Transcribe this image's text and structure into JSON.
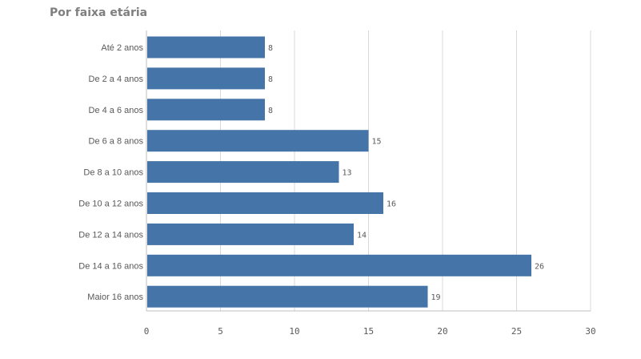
{
  "chart_data": {
    "type": "bar",
    "orientation": "horizontal",
    "title": "Por faixa etária",
    "categories": [
      "Até 2 anos",
      "De 2 a 4 anos",
      "De 4 a 6 anos",
      "De 6 a 8 anos",
      "De 8 a 10 anos",
      "De 10 a 12 anos",
      "De 12 a 14 anos",
      "De 14 a 16 anos",
      "Maior 16 anos"
    ],
    "values": [
      8,
      8,
      8,
      15,
      13,
      16,
      14,
      26,
      19
    ],
    "xlim": [
      0,
      30
    ],
    "xticks": [
      0,
      5,
      10,
      15,
      20,
      25,
      30
    ],
    "grid": true,
    "data_labels": true,
    "bar_color": "#4575a8",
    "grid_color": "#d9d9d9"
  }
}
